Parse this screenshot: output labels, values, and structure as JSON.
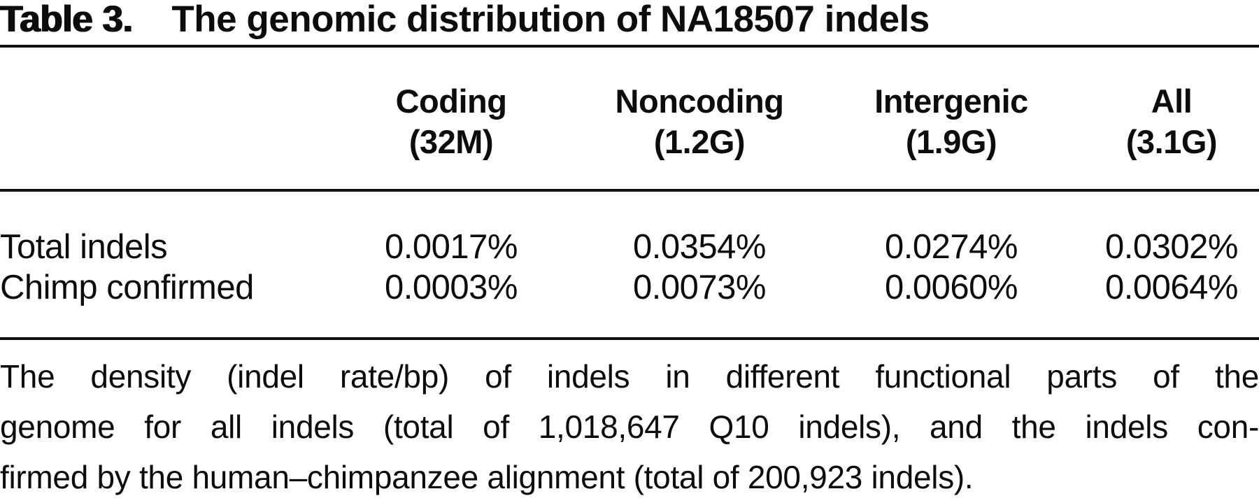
{
  "table": {
    "label": "Table 3.",
    "title": "The genomic distribution of NA18507 indels",
    "columns": [
      {
        "line1": "Coding",
        "line2": "(32M)"
      },
      {
        "line1": "Noncoding",
        "line2": "(1.2G)"
      },
      {
        "line1": "Intergenic",
        "line2": "(1.9G)"
      },
      {
        "line1": "All",
        "line2": "(3.1G)"
      }
    ],
    "rows": [
      {
        "label": "Total indels",
        "values": [
          "0.0017%",
          "0.0354%",
          "0.0274%",
          "0.0302%"
        ]
      },
      {
        "label": "Chimp confirmed",
        "values": [
          "0.0003%",
          "0.0073%",
          "0.0060%",
          "0.0064%"
        ]
      }
    ]
  },
  "caption": {
    "lines": [
      "The density (indel rate/bp) of indels in different functional parts of the",
      "genome for all indels (total of 1,018,647 Q10 indels), and the indels con-",
      "firmed by the human–chimpanzee alignment (total of 200,923 indels)."
    ]
  },
  "colors": {
    "text": "#0c0c0c",
    "background": "#ffffff",
    "rule": "#101010"
  }
}
